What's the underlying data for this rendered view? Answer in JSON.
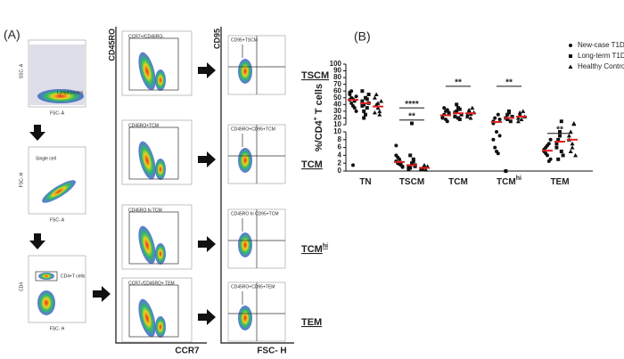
{
  "panel_a": {
    "label": "(A)",
    "plot1": {
      "ylabel": "SSC- A",
      "xlabel": "FSC- A",
      "gate": "Lymphocytes"
    },
    "plot2": {
      "ylabel": "FSC- H",
      "xlabel": "FSC- A",
      "gate": "Single cell"
    },
    "plot3": {
      "ylabel": "CD4",
      "xlabel": "FSC- H",
      "gate": "CD4+T cells"
    },
    "col2_ylabel": "CD45RO",
    "col2_xlabel": "CCR7",
    "col3_ylabel": "CD95",
    "col3_xlabel": "FSC- H",
    "gates_col2": [
      "CCR7+/CD45RO-",
      "CD45RO+TCM",
      "CD45RO hi TCM",
      "CCR7-/CD45RO+ TEM"
    ],
    "gates_col3": [
      "CD95+TSCM",
      "CD45RO+CD95+TCM",
      "CD45RO hi CD95+TCM",
      "CD45RO+CD95+TEM"
    ],
    "rows": [
      "TSCM",
      "TCM",
      "TCM",
      "TEM"
    ],
    "row_sups": [
      null,
      null,
      "hi",
      null
    ]
  },
  "chart_data": {
    "type": "dot",
    "label": "(B)",
    "ylabel": [
      "%/CD4",
      "+",
      " T cells"
    ],
    "categories": [
      "TN",
      "TSCM",
      "TCM",
      "TCM",
      "TEM"
    ],
    "category_sups": [
      null,
      null,
      null,
      "hi",
      null
    ],
    "segments": [
      {
        "ylim": [
          0,
          10
        ],
        "yticks": [
          0,
          2,
          4,
          6,
          8,
          10
        ]
      },
      {
        "ylim": [
          10,
          100
        ],
        "yticks": [
          10,
          20,
          30,
          40,
          50,
          60,
          70,
          80,
          90,
          100
        ]
      }
    ],
    "mean_color": "#e02020",
    "series": [
      {
        "name": "New-case T1D",
        "marker": "circle",
        "color": "#111111",
        "values": [
          [
            55,
            50,
            48,
            45,
            52,
            58,
            42,
            38,
            35,
            30,
            47,
            60,
            1.5
          ],
          [
            2.5,
            2,
            3,
            1.5,
            1,
            4,
            3.5,
            1.8,
            2.2,
            1.2,
            6.5
          ],
          [
            20,
            25,
            30,
            15,
            28,
            22,
            35,
            18,
            32,
            26
          ],
          [
            15,
            20,
            10,
            25,
            9,
            8,
            6,
            5,
            4.5,
            18,
            12
          ],
          [
            5,
            6,
            4,
            7,
            3,
            5.5,
            4.5,
            6.5,
            2.5,
            8
          ]
        ],
        "means": [
          47,
          2.3,
          24,
          14,
          5.2
        ]
      },
      {
        "name": "Long-term T1D",
        "marker": "square",
        "color": "#111111",
        "values": [
          [
            45,
            40,
            50,
            35,
            55,
            60,
            30,
            25,
            48,
            42,
            38,
            20
          ],
          [
            1,
            0.8,
            2,
            3,
            1.5,
            0.5,
            4,
            12,
            2.5,
            1.2
          ],
          [
            22,
            30,
            35,
            18,
            25,
            28,
            40,
            20,
            33
          ],
          [
            20,
            25,
            30,
            15,
            22,
            0,
            18,
            28
          ],
          [
            6,
            8,
            10,
            5,
            4,
            7,
            3,
            9,
            15
          ]
        ],
        "means": [
          42,
          1.5,
          27,
          20,
          7.5
        ]
      },
      {
        "name": "Healthy Control",
        "marker": "triangle",
        "color": "#111111",
        "values": [
          [
            50,
            40,
            35,
            30,
            45,
            28,
            55,
            42,
            25
          ],
          [
            0.5,
            0.8,
            1,
            0.3,
            1.2,
            0.6,
            0.4,
            1.5
          ],
          [
            25,
            30,
            20,
            35,
            28,
            22,
            32,
            26
          ],
          [
            20,
            25,
            18,
            30,
            22,
            15,
            28
          ],
          [
            8,
            10,
            6,
            12,
            4,
            9,
            5,
            7,
            11
          ]
        ],
        "means": [
          37,
          0.8,
          27,
          22,
          8
        ]
      }
    ],
    "annotations": [
      {
        "text": "****",
        "category": 1,
        "y": 35
      },
      {
        "text": "**",
        "category": 1,
        "y": 17
      },
      {
        "text": "**",
        "category": 2,
        "y": 67
      },
      {
        "text": "**",
        "category": 3,
        "y": 67
      },
      {
        "text": "**",
        "category": 4,
        "y": 9.6
      }
    ],
    "legend": "top-right"
  }
}
